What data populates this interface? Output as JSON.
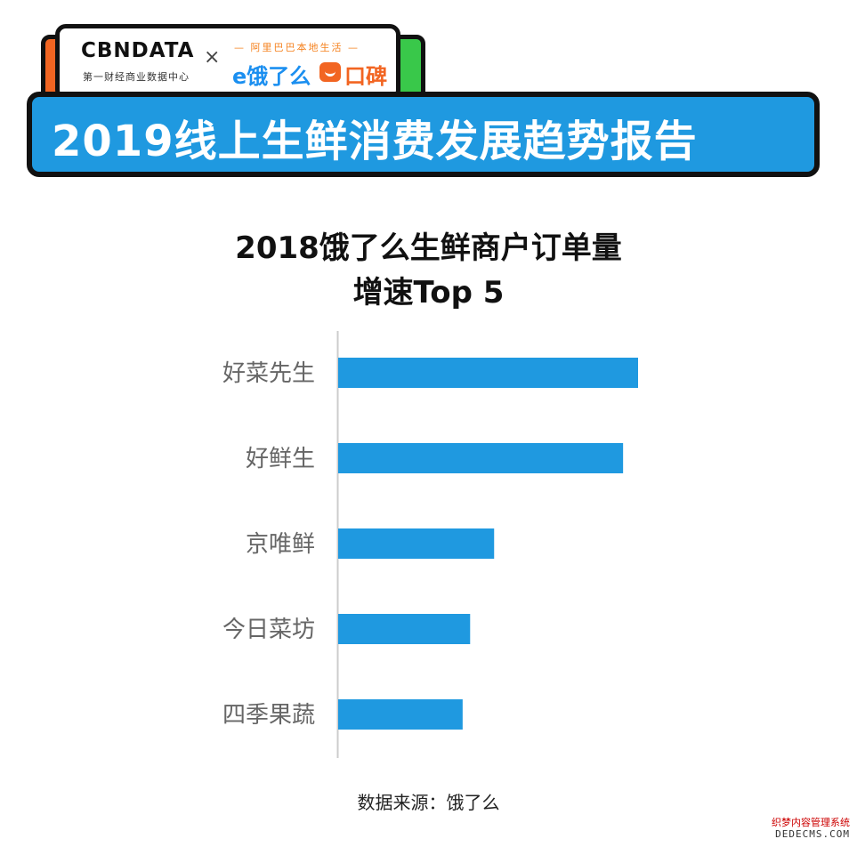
{
  "header": {
    "cbn_logo": "CBNDATA",
    "cbn_sub": "第一财经商业数据中心",
    "times": "×",
    "ali_tagline": "— 阿里巴巴本地生活 —",
    "eleme": "e饿了么",
    "koubei": "口碑",
    "report_title": "2019线上生鲜消费发展趋势报告"
  },
  "chart_data": {
    "type": "bar",
    "orientation": "horizontal",
    "title_lines": [
      "2018饿了么生鲜商户订单量",
      "增速Top 5"
    ],
    "categories": [
      "好菜先生",
      "好鲜生",
      "京唯鲜",
      "今日菜坊",
      "四季果蔬"
    ],
    "values": [
      100,
      95,
      52,
      44,
      41.5
    ],
    "xlim": [
      0,
      100
    ],
    "xlabel": "",
    "ylabel": "",
    "bar_color": "#1f99e0",
    "grid": false
  },
  "source": "数据来源：饿了么",
  "watermark": {
    "line1": "织梦内容管理系统",
    "line2": "DEDECMS.COM"
  },
  "colors": {
    "accent": "#1f99e0",
    "orange": "#f26522",
    "green": "#39c84a"
  }
}
